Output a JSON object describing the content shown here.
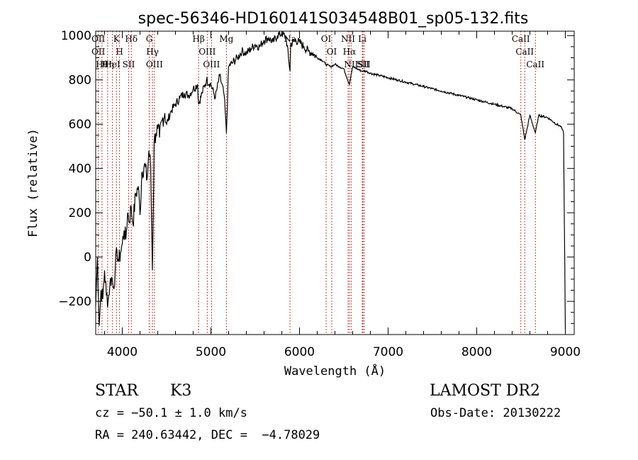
{
  "chart_data": {
    "type": "line",
    "title": "spec-56346-HD160141S034548B01_sp05-132.fits",
    "xlabel": "Wavelength (Å)",
    "ylabel": "Flux (relative)",
    "xlim": [
      3700,
      9100
    ],
    "ylim": [
      -350,
      1020
    ],
    "x_ticks": [
      4000,
      5000,
      6000,
      7000,
      8000,
      9000
    ],
    "x_tick_labels": [
      "4000",
      "5000",
      "6000",
      "7000",
      "8000",
      "9000"
    ],
    "y_ticks": [
      -200,
      0,
      200,
      400,
      600,
      800,
      1000
    ],
    "y_tick_labels": [
      "−200",
      "0",
      "200",
      "400",
      "600",
      "800",
      "1000"
    ],
    "grid": false,
    "series": [
      {
        "x": [
          3700,
          3720,
          3740,
          3760,
          3780,
          3800,
          3820,
          3840,
          3860,
          3880,
          3900,
          3920,
          3940,
          3960,
          3980,
          4000,
          4020,
          4040,
          4060,
          4080,
          4100,
          4120,
          4150,
          4180,
          4200,
          4220,
          4250,
          4280,
          4300,
          4320,
          4340,
          4360,
          4380,
          4400,
          4420,
          4450,
          4480,
          4500,
          4550,
          4600,
          4650,
          4700,
          4750,
          4800,
          4850,
          4861,
          4900,
          4950,
          5000,
          5050,
          5100,
          5150,
          5175,
          5200,
          5250,
          5300,
          5350,
          5400,
          5450,
          5500,
          5550,
          5600,
          5650,
          5700,
          5750,
          5800,
          5850,
          5893,
          5900,
          5950,
          6000,
          6050,
          6100,
          6150,
          6200,
          6250,
          6300,
          6350,
          6400,
          6450,
          6500,
          6563,
          6600,
          6650,
          6700,
          6750,
          6800,
          6900,
          7000,
          7100,
          7200,
          7300,
          7400,
          7500,
          7600,
          7700,
          7800,
          7900,
          8000,
          8100,
          8200,
          8300,
          8400,
          8498,
          8542,
          8600,
          8662,
          8700,
          8800,
          8900,
          8950,
          8980,
          9000
        ],
        "y": [
          -220,
          0,
          -310,
          -150,
          -190,
          -60,
          -170,
          -200,
          -120,
          -90,
          -140,
          -60,
          30,
          -20,
          20,
          60,
          120,
          80,
          200,
          160,
          230,
          150,
          280,
          320,
          190,
          380,
          420,
          350,
          480,
          410,
          -60,
          520,
          560,
          580,
          540,
          620,
          650,
          600,
          660,
          690,
          720,
          740,
          730,
          760,
          780,
          690,
          740,
          800,
          780,
          720,
          820,
          730,
          560,
          860,
          880,
          900,
          930,
          920,
          940,
          960,
          950,
          980,
          990,
          970,
          1000,
          1010,
          990,
          840,
          960,
          980,
          970,
          950,
          930,
          920,
          900,
          890,
          870,
          860,
          870,
          860,
          850,
          780,
          860,
          850,
          840,
          840,
          830,
          820,
          810,
          800,
          790,
          780,
          770,
          760,
          750,
          740,
          730,
          720,
          710,
          700,
          690,
          680,
          670,
          640,
          530,
          640,
          560,
          640,
          630,
          600,
          590,
          560,
          -330
        ]
      }
    ],
    "line_markers": [
      {
        "wavelength": 3730,
        "labels": [
          "OII",
          "OII"
        ]
      },
      {
        "wavelength": 3771,
        "labels": [
          "Hθ"
        ]
      },
      {
        "wavelength": 3835,
        "labels": [
          "Hη"
        ]
      },
      {
        "wavelength": 3889,
        "labels": [
          "HeI"
        ]
      },
      {
        "wavelength": 3934,
        "labels": [
          "K"
        ]
      },
      {
        "wavelength": 3969,
        "labels": [
          "H"
        ]
      },
      {
        "wavelength": 4072,
        "labels": [
          "SII"
        ]
      },
      {
        "wavelength": 4102,
        "labels": [
          "Hδ"
        ]
      },
      {
        "wavelength": 4304,
        "labels": [
          "G"
        ]
      },
      {
        "wavelength": 4341,
        "labels": [
          "Hγ"
        ]
      },
      {
        "wavelength": 4363,
        "labels": [
          "OIII"
        ]
      },
      {
        "wavelength": 4861,
        "labels": [
          "Hβ"
        ]
      },
      {
        "wavelength": 4959,
        "labels": [
          "OIII"
        ]
      },
      {
        "wavelength": 5007,
        "labels": [
          "OIII"
        ]
      },
      {
        "wavelength": 5175,
        "labels": [
          "Mg"
        ]
      },
      {
        "wavelength": 5893,
        "labels": [
          "Na"
        ]
      },
      {
        "wavelength": 6300,
        "labels": [
          "OI"
        ]
      },
      {
        "wavelength": 6364,
        "labels": [
          "OI"
        ]
      },
      {
        "wavelength": 6548,
        "labels": [
          "NII"
        ]
      },
      {
        "wavelength": 6563,
        "labels": [
          "Hα"
        ]
      },
      {
        "wavelength": 6583,
        "labels": [
          "NII"
        ]
      },
      {
        "wavelength": 6708,
        "labels": [
          "Li"
        ]
      },
      {
        "wavelength": 6716,
        "labels": [
          "SII"
        ]
      },
      {
        "wavelength": 6731,
        "labels": [
          "SII"
        ]
      },
      {
        "wavelength": 8498,
        "labels": [
          "CaII"
        ]
      },
      {
        "wavelength": 8542,
        "labels": [
          "CaII"
        ]
      },
      {
        "wavelength": 8662,
        "labels": [
          "CaII"
        ]
      }
    ]
  },
  "info": {
    "object_class": "STAR",
    "subclass": "K3",
    "survey": "LAMOST DR2",
    "cz": "cz = −50.1 ± 1.0 km/s",
    "obs_date": "Obs-Date: 20130222",
    "coords": "RA = 240.63442, DEC =  −4.78029"
  },
  "colors": {
    "line": "#000000",
    "marker": "#b40000"
  }
}
